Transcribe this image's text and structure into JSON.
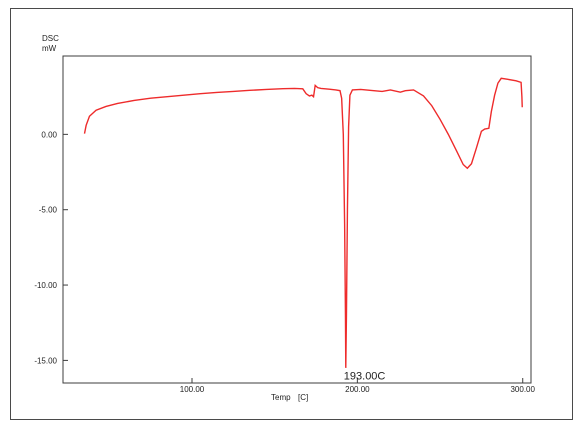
{
  "chart_data": {
    "type": "line",
    "ylabel_line1": "DSC",
    "ylabel_line2": "mW",
    "xlabel": "Temp",
    "xunit": "[C]",
    "xlim": [
      22,
      305
    ],
    "ylim": [
      -16.5,
      5.2
    ],
    "x_ticks": [
      {
        "value": 100,
        "label": "100.00"
      },
      {
        "value": 200,
        "label": "200.00"
      },
      {
        "value": 300,
        "label": "300.00"
      }
    ],
    "y_ticks": [
      {
        "value": 0,
        "label": "0.00"
      },
      {
        "value": -5,
        "label": "-5.00"
      },
      {
        "value": -10,
        "label": "-10.00"
      },
      {
        "value": -15,
        "label": "-15.00"
      }
    ],
    "annotation": {
      "text": "193.00C",
      "x": 193.0,
      "y": -15.6
    },
    "line_color": "#ee2b2b",
    "series": [
      {
        "values": [
          [
            35.0,
            0.05
          ],
          [
            36.0,
            0.6
          ],
          [
            38.0,
            1.2
          ],
          [
            42.0,
            1.6
          ],
          [
            48.0,
            1.85
          ],
          [
            55.0,
            2.05
          ],
          [
            65.0,
            2.25
          ],
          [
            75.0,
            2.4
          ],
          [
            85.0,
            2.5
          ],
          [
            95.0,
            2.6
          ],
          [
            105.0,
            2.7
          ],
          [
            115.0,
            2.78
          ],
          [
            125.0,
            2.85
          ],
          [
            135.0,
            2.92
          ],
          [
            145.0,
            2.98
          ],
          [
            155.0,
            3.03
          ],
          [
            162.0,
            3.05
          ],
          [
            167.0,
            3.02
          ],
          [
            169.0,
            2.7
          ],
          [
            171.0,
            2.55
          ],
          [
            172.5,
            2.6
          ],
          [
            173.5,
            2.5
          ],
          [
            174.5,
            3.25
          ],
          [
            176.0,
            3.1
          ],
          [
            178.0,
            3.05
          ],
          [
            183.0,
            3.0
          ],
          [
            187.0,
            2.95
          ],
          [
            189.5,
            2.9
          ],
          [
            190.5,
            2.4
          ],
          [
            191.5,
            0.0
          ],
          [
            192.3,
            -6.0
          ],
          [
            192.8,
            -12.0
          ],
          [
            193.0,
            -15.5
          ],
          [
            193.4,
            -12.0
          ],
          [
            194.0,
            -5.0
          ],
          [
            194.7,
            0.5
          ],
          [
            195.5,
            2.6
          ],
          [
            197.0,
            2.95
          ],
          [
            202.0,
            2.98
          ],
          [
            210.0,
            2.9
          ],
          [
            215.0,
            2.85
          ],
          [
            220.0,
            2.95
          ],
          [
            226.0,
            2.8
          ],
          [
            229.0,
            2.9
          ],
          [
            234.0,
            2.95
          ],
          [
            237.0,
            2.75
          ],
          [
            240.0,
            2.55
          ],
          [
            245.0,
            1.9
          ],
          [
            250.0,
            1.0
          ],
          [
            255.0,
            0.0
          ],
          [
            260.0,
            -1.1
          ],
          [
            264.0,
            -2.0
          ],
          [
            266.5,
            -2.25
          ],
          [
            269.0,
            -1.95
          ],
          [
            272.0,
            -0.9
          ],
          [
            275.0,
            0.2
          ],
          [
            277.0,
            0.35
          ],
          [
            279.5,
            0.4
          ],
          [
            281.0,
            1.5
          ],
          [
            283.0,
            2.6
          ],
          [
            285.0,
            3.4
          ],
          [
            287.0,
            3.72
          ],
          [
            291.0,
            3.65
          ],
          [
            296.0,
            3.55
          ],
          [
            299.0,
            3.45
          ],
          [
            299.5,
            2.5
          ],
          [
            299.7,
            1.8
          ]
        ]
      }
    ]
  }
}
